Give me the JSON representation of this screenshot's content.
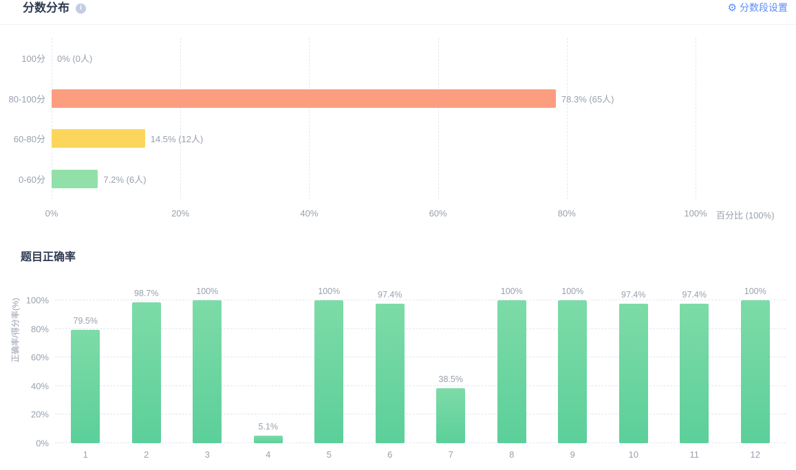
{
  "header": {
    "settings_label": "分数段设置",
    "icons": {
      "gear": "⚙",
      "info": "i"
    }
  },
  "colors": {
    "accent_blue": "#5B8CF8",
    "title_text": "#2F3B52",
    "axis_text": "#98A0AC",
    "gridline": "#E2E7F3",
    "band_orange": "#FB9E80",
    "band_yellow": "#FBD55C",
    "band_green": "#92E0A9",
    "bar_gradient_top": "#7DDBA7",
    "bar_gradient_bottom": "#5CCF9A"
  },
  "chart_data": [
    {
      "type": "bar",
      "orientation": "horizontal",
      "title": "分数分布",
      "categories": [
        "100分",
        "80-100分",
        "60-80分",
        "0-60分"
      ],
      "values": [
        0,
        78.3,
        14.5,
        7.2
      ],
      "counts": [
        0,
        65,
        12,
        6
      ],
      "labels": [
        "0% (0人)",
        "78.3% (65人)",
        "14.5% (12人)",
        "7.2% (6人)"
      ],
      "colors": [
        null,
        "#FB9E80",
        "#FBD55C",
        "#92E0A9"
      ],
      "x_ticks": [
        "0%",
        "20%",
        "40%",
        "60%",
        "80%",
        "100%"
      ],
      "xlabel": "百分比 (100%)",
      "xlim": [
        0,
        100
      ],
      "grid": true,
      "legend": false
    },
    {
      "type": "bar",
      "orientation": "vertical",
      "title": "题目正确率",
      "categories": [
        "1",
        "2",
        "3",
        "4",
        "5",
        "6",
        "7",
        "8",
        "9",
        "10",
        "11",
        "12"
      ],
      "values": [
        79.5,
        98.7,
        100,
        5.1,
        100,
        97.4,
        38.5,
        100,
        100,
        97.4,
        97.4,
        100
      ],
      "labels": [
        "79.5%",
        "98.7%",
        "100%",
        "5.1%",
        "100%",
        "97.4%",
        "38.5%",
        "100%",
        "100%",
        "97.4%",
        "97.4%",
        "100%"
      ],
      "y_ticks": [
        "100%",
        "80%",
        "60%",
        "40%",
        "20%",
        "0%"
      ],
      "ylabel": "正确率/得分率(%)",
      "ylim": [
        0,
        100
      ],
      "bar_color_top": "#7DDBA7",
      "bar_color_bottom": "#5CCF9A",
      "grid": true,
      "legend": false
    }
  ]
}
